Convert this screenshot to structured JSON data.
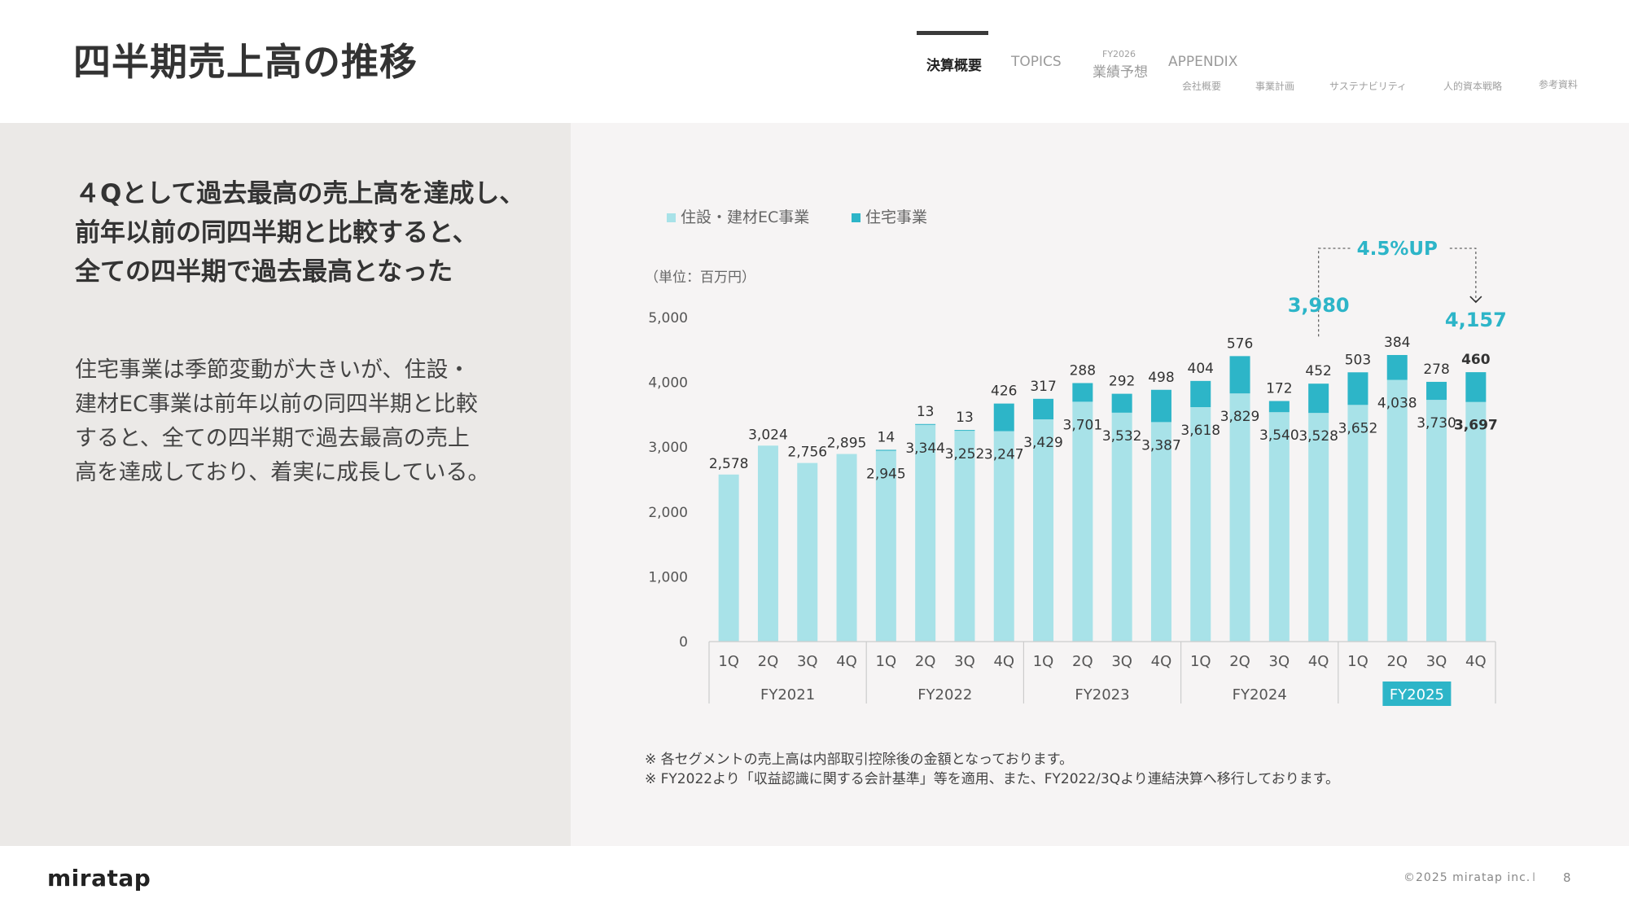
{
  "header": {
    "title": "四半期売上高の推移",
    "nav": {
      "active": "決算概要",
      "topics": "TOPICS",
      "forecast_small": "FY2026",
      "forecast": "業績予想",
      "appendix": "APPENDIX",
      "sub": [
        "会社概要",
        "事業計画",
        "サステナビリティ",
        "人的資本戦略",
        "参考資料"
      ]
    }
  },
  "left": {
    "headline": [
      "４Qとして過去最高の売上高を達成し、",
      "前年以前の同四半期と比較すると、",
      "全ての四半期で過去最高となった"
    ],
    "body": [
      "住宅事業は季節変動が大きいが、住設・",
      "建材EC事業は前年以前の同四半期と比較",
      "すると、全ての四半期で過去最高の売上",
      "高を達成しており、着実に成長している。"
    ]
  },
  "chart_data": {
    "type": "bar",
    "stacked": true,
    "unit_label": "（単位：百万円）",
    "legend": [
      "住設・建材EC事業",
      "住宅事業"
    ],
    "colors": {
      "ec": "#a8e2e8",
      "housing": "#2db5c8",
      "accent": "#2db5c8"
    },
    "ylim": [
      0,
      5000
    ],
    "yticks": [
      "0",
      "1,000",
      "2,000",
      "3,000",
      "4,000",
      "5,000"
    ],
    "quarters": [
      "1Q",
      "2Q",
      "3Q",
      "4Q",
      "1Q",
      "2Q",
      "3Q",
      "4Q",
      "1Q",
      "2Q",
      "3Q",
      "4Q",
      "1Q",
      "2Q",
      "3Q",
      "4Q",
      "1Q",
      "2Q",
      "3Q",
      "4Q"
    ],
    "fiscal_years": [
      "FY2021",
      "FY2022",
      "FY2023",
      "FY2024",
      "FY2025"
    ],
    "highlight_year": "FY2025",
    "series": [
      {
        "name": "住設・建材EC事業",
        "values": [
          2578,
          3024,
          2756,
          2895,
          2945,
          3344,
          3252,
          3247,
          3429,
          3701,
          3532,
          3387,
          3618,
          3829,
          3540,
          3528,
          3652,
          4038,
          3730,
          3697
        ],
        "labels": [
          "2,578",
          "3,024",
          "2,756",
          "2,895",
          "2,945",
          "3,344",
          "3,252",
          "3,247",
          "3,429",
          "3,701",
          "3,532",
          "3,387",
          "3,618",
          "3,829",
          "3,540",
          "3,528",
          "3,652",
          "4,038",
          "3,730",
          "3,697"
        ]
      },
      {
        "name": "住宅事業",
        "values": [
          0,
          0,
          0,
          0,
          14,
          13,
          13,
          426,
          317,
          288,
          292,
          498,
          404,
          576,
          172,
          452,
          503,
          384,
          278,
          460
        ],
        "labels": [
          "",
          "",
          "",
          "",
          "14",
          "13",
          "13",
          "426",
          "317",
          "288",
          "292",
          "498",
          "404",
          "576",
          "172",
          "452",
          "503",
          "384",
          "278",
          "460"
        ]
      }
    ],
    "annotation": {
      "growth": "4.5%UP",
      "prev_total": "3,980",
      "curr_total": "4,157"
    },
    "notes": [
      "※ 各セグメントの売上高は内部取引控除後の金額となっております。",
      "※ FY2022より「収益認識に関する会計基準」等を適用、また、FY2022/3Qより連結決算へ移行しております。"
    ]
  },
  "footer": {
    "logo": "miratap",
    "copyright": "©2025 miratap inc.",
    "separator": "I",
    "page": "8"
  }
}
